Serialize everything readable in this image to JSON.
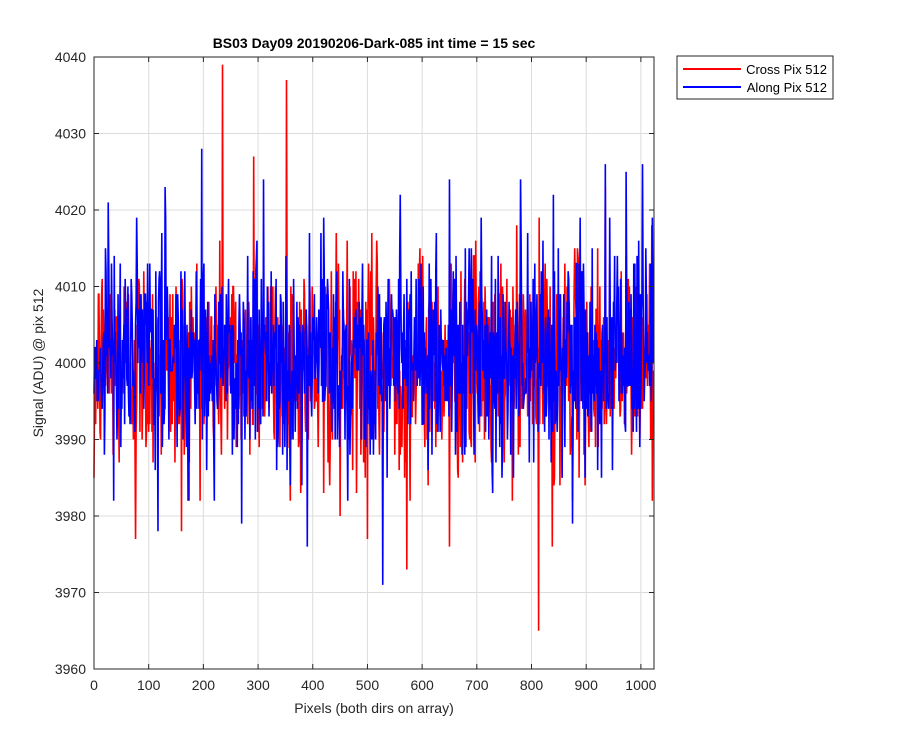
{
  "chart_data": {
    "type": "line",
    "title": "BS03 Day09 20190206-Dark-085 int time = 15 sec",
    "xlabel": "Pixels (both dirs on array)",
    "ylabel": "Signal (ADU) @ pix 512",
    "xlim": [
      0,
      1024
    ],
    "ylim": [
      3960,
      4040
    ],
    "xticks": [
      0,
      100,
      200,
      300,
      400,
      500,
      600,
      700,
      800,
      900,
      1000
    ],
    "yticks": [
      3960,
      3970,
      3980,
      3990,
      4000,
      4010,
      4020,
      4030,
      4040
    ],
    "grid": true,
    "legend_position": "outside-top-right",
    "num_points": 1024,
    "series": [
      {
        "name": "Cross Pix 512",
        "color": "#ff0000",
        "mean": 4000,
        "noise_sigma": 7,
        "features": [
          {
            "x": 0,
            "y": 3985
          },
          {
            "x": 76,
            "y": 3977
          },
          {
            "x": 160,
            "y": 3978
          },
          {
            "x": 235,
            "y": 4039
          },
          {
            "x": 292,
            "y": 4027
          },
          {
            "x": 352,
            "y": 4037
          },
          {
            "x": 420,
            "y": 3983
          },
          {
            "x": 450,
            "y": 3980
          },
          {
            "x": 500,
            "y": 3977
          },
          {
            "x": 572,
            "y": 3973
          },
          {
            "x": 650,
            "y": 3976
          },
          {
            "x": 813,
            "y": 3965
          },
          {
            "x": 838,
            "y": 3976
          },
          {
            "x": 935,
            "y": 4023
          },
          {
            "x": 1020,
            "y": 4018
          }
        ]
      },
      {
        "name": "Along Pix 512",
        "color": "#0000ff",
        "mean": 4001,
        "noise_sigma": 7,
        "features": [
          {
            "x": 26,
            "y": 4021
          },
          {
            "x": 117,
            "y": 3978
          },
          {
            "x": 130,
            "y": 4023
          },
          {
            "x": 197,
            "y": 4028
          },
          {
            "x": 270,
            "y": 3979
          },
          {
            "x": 310,
            "y": 4024
          },
          {
            "x": 390,
            "y": 3976
          },
          {
            "x": 528,
            "y": 3971
          },
          {
            "x": 560,
            "y": 4022
          },
          {
            "x": 650,
            "y": 4024
          },
          {
            "x": 780,
            "y": 4024
          },
          {
            "x": 840,
            "y": 4022
          },
          {
            "x": 875,
            "y": 3979
          },
          {
            "x": 935,
            "y": 4026
          },
          {
            "x": 973,
            "y": 4025
          },
          {
            "x": 1003,
            "y": 4026
          }
        ]
      }
    ]
  }
}
